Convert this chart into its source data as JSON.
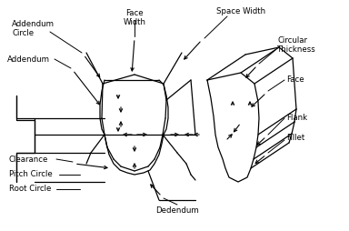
{
  "bg_color": "#ffffff",
  "line_color": "#000000",
  "labels": {
    "addendum_circle": "Addendum\nCircle",
    "addendum": "Addendum",
    "face_width": "Face\nWidth",
    "space_width": "Space Width",
    "circular_thickness": "Circular\nThickness",
    "face": "Face",
    "flank": "Flank",
    "fillet": "Fillet",
    "clearance": "Clearance",
    "pitch_circle": "Pitch Circle",
    "root_circle": "Root Circle",
    "dedendum": "Dedendum"
  },
  "figsize": [
    3.84,
    2.54
  ],
  "dpi": 100
}
